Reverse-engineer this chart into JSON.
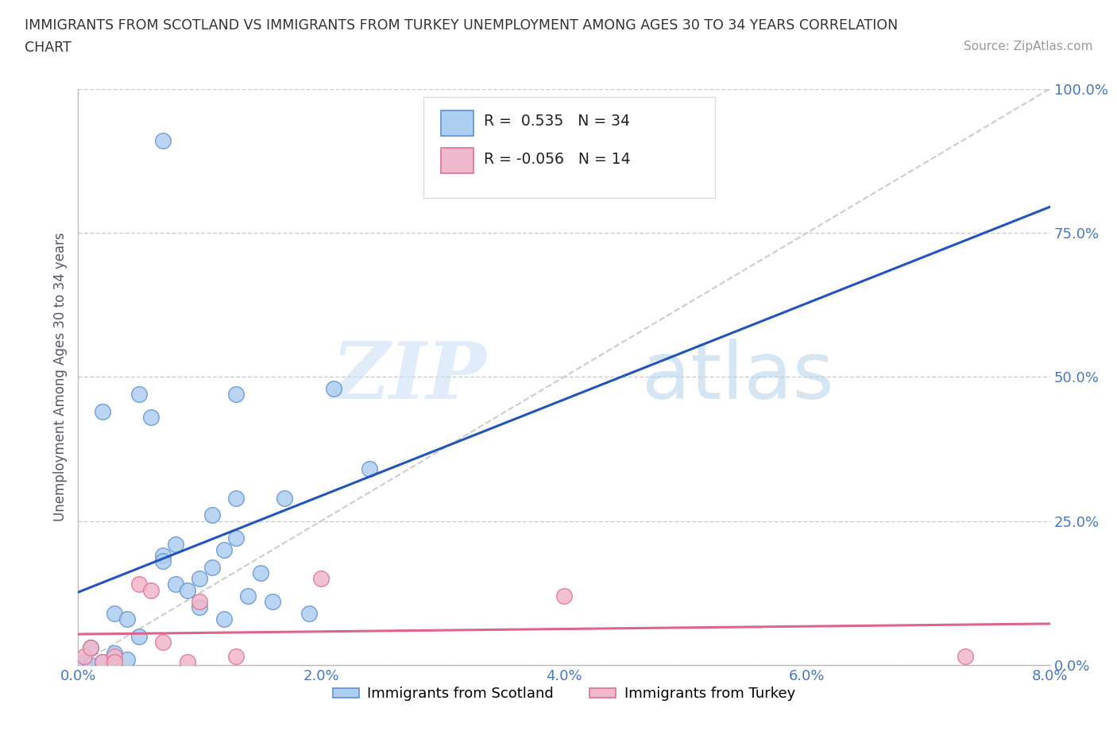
{
  "title_line1": "IMMIGRANTS FROM SCOTLAND VS IMMIGRANTS FROM TURKEY UNEMPLOYMENT AMONG AGES 30 TO 34 YEARS CORRELATION",
  "title_line2": "CHART",
  "source_text": "Source: ZipAtlas.com",
  "ylabel": "Unemployment Among Ages 30 to 34 years",
  "xlim": [
    0.0,
    0.08
  ],
  "ylim": [
    0.0,
    1.0
  ],
  "xtick_labels": [
    "0.0%",
    "2.0%",
    "4.0%",
    "6.0%",
    "8.0%"
  ],
  "xtick_vals": [
    0.0,
    0.02,
    0.04,
    0.06,
    0.08
  ],
  "ytick_labels": [
    "0.0%",
    "25.0%",
    "50.0%",
    "75.0%",
    "100.0%"
  ],
  "ytick_vals": [
    0.0,
    0.25,
    0.5,
    0.75,
    1.0
  ],
  "scotland_color": "#aecef0",
  "turkey_color": "#f0b8cc",
  "scotland_edge": "#6090d8",
  "turkey_edge": "#e07090",
  "scotland_R": 0.535,
  "scotland_N": 34,
  "turkey_R": -0.056,
  "turkey_N": 14,
  "scotland_line_color": "#2255bb",
  "turkey_line_color": "#dd6688",
  "diagonal_color": "#cccccc",
  "watermark_zip": "ZIP",
  "watermark_atlas": "atlas",
  "legend_label1": "Immigrants from Scotland",
  "legend_label2": "Immigrants from Turkey",
  "tick_color": "#4477cc",
  "ylabel_color": "#555566",
  "scotland_x": [
    0.0005,
    0.001,
    0.001,
    0.002,
    0.002,
    0.003,
    0.003,
    0.004,
    0.004,
    0.005,
    0.005,
    0.006,
    0.007,
    0.007,
    0.008,
    0.008,
    0.009,
    0.01,
    0.01,
    0.011,
    0.011,
    0.012,
    0.012,
    0.013,
    0.013,
    0.014,
    0.015,
    0.016,
    0.017,
    0.019,
    0.021,
    0.024,
    0.013,
    0.007
  ],
  "scotland_y": [
    0.005,
    0.0,
    0.03,
    0.005,
    0.44,
    0.09,
    0.02,
    0.01,
    0.08,
    0.47,
    0.05,
    0.43,
    0.19,
    0.18,
    0.21,
    0.14,
    0.13,
    0.15,
    0.1,
    0.17,
    0.26,
    0.2,
    0.08,
    0.29,
    0.22,
    0.12,
    0.16,
    0.11,
    0.29,
    0.09,
    0.48,
    0.34,
    0.47,
    0.91
  ],
  "turkey_x": [
    0.0005,
    0.001,
    0.002,
    0.003,
    0.003,
    0.005,
    0.006,
    0.007,
    0.009,
    0.01,
    0.013,
    0.02,
    0.04,
    0.073
  ],
  "turkey_y": [
    0.015,
    0.03,
    0.005,
    0.015,
    0.005,
    0.14,
    0.13,
    0.04,
    0.005,
    0.11,
    0.015,
    0.15,
    0.12,
    0.015
  ]
}
